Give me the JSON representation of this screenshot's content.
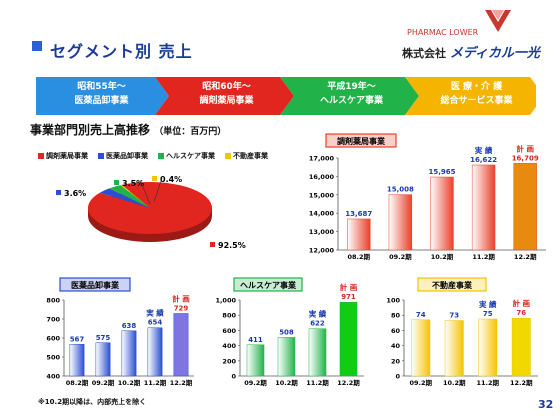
{
  "header": {
    "title": "セグメント別 売上",
    "logo_text": "PHARMAC  LOWER",
    "company_prefix": "株式会社",
    "company_name": "メディカル一光",
    "page_number": "32"
  },
  "timeline": [
    {
      "line1": "昭和55年～",
      "line2": "医薬品卸事業",
      "color": "#2a8fe0"
    },
    {
      "line1": "昭和60年～",
      "line2": "調剤薬局事業",
      "color": "#e0261e"
    },
    {
      "line1": "平成19年～",
      "line2": "ヘルスケア事業",
      "color": "#22b24a"
    },
    {
      "line1": "医 療・介 護",
      "line2": "総合サービス事業",
      "color": "#f5b400"
    }
  ],
  "section": {
    "title": "事業部門別売上高推移",
    "unit": "（単位：百万円）"
  },
  "footnote": "※10.2期以降は、内部売上を除く",
  "chart_data": [
    {
      "type": "pie",
      "title": "",
      "legend": [
        "調剤薬局事業",
        "医薬品卸事業",
        "ヘルスケア事業",
        "不動産事業"
      ],
      "legend_colors": [
        "#e0261e",
        "#2a4fd0",
        "#22b24a",
        "#f5c400"
      ],
      "values": [
        92.5,
        3.6,
        3.5,
        0.4
      ],
      "labels": [
        "92.5%",
        "3.6%",
        "3.5%",
        "0.4%"
      ]
    },
    {
      "type": "bar",
      "title": "調剤薬局事業",
      "categories": [
        "08.2期",
        "09.2期",
        "10.2期",
        "11.2期",
        "12.2期"
      ],
      "values": [
        13687,
        15008,
        15965,
        16622,
        16709
      ],
      "value_labels": [
        "13,687",
        "15,008",
        "15,965",
        "16,622",
        "16,709"
      ],
      "annotations": {
        "jisseki": "実 績",
        "keikaku": "計 画"
      },
      "ylim": [
        12000,
        17000
      ],
      "yticks": [
        "12,000",
        "13,000",
        "14,000",
        "15,000",
        "16,000",
        "17,000"
      ],
      "bar_color": "#e8402a",
      "plan_color": "#e88a10"
    },
    {
      "type": "bar",
      "title": "医薬品卸事業",
      "categories": [
        "08.2期",
        "09.2期",
        "10.2期",
        "11.2期",
        "12.2期"
      ],
      "values": [
        567,
        575,
        638,
        654,
        729
      ],
      "value_labels": [
        "567",
        "575",
        "638",
        "654",
        "729"
      ],
      "annotations": {
        "jisseki": "実 績",
        "keikaku": "計 画"
      },
      "ylim": [
        400,
        800
      ],
      "yticks": [
        "400",
        "500",
        "600",
        "700",
        "800"
      ],
      "bar_color": "#2a4fd0",
      "plan_color": "#7f74e0"
    },
    {
      "type": "bar",
      "title": "ヘルスケア事業",
      "categories": [
        "09.2期",
        "10.2期",
        "11.2期",
        "12.2期"
      ],
      "values": [
        411,
        508,
        622,
        971
      ],
      "value_labels": [
        "411",
        "508",
        "622",
        "971"
      ],
      "annotations": {
        "jisseki": "実 績",
        "keikaku": "計 画"
      },
      "ylim": [
        0,
        1000
      ],
      "yticks": [
        "0",
        "200",
        "400",
        "600",
        "800",
        "1,000"
      ],
      "bar_color": "#22b24a",
      "plan_color": "#11cc11"
    },
    {
      "type": "bar",
      "title": "不動産事業",
      "categories": [
        "09.2期",
        "10.2期",
        "11.2期",
        "12.2期"
      ],
      "values": [
        74,
        73,
        75,
        76
      ],
      "value_labels": [
        "74",
        "73",
        "75",
        "76"
      ],
      "annotations": {
        "jisseki": "実 績",
        "keikaku": "計 画"
      },
      "ylim": [
        0,
        100
      ],
      "yticks": [
        "0",
        "20",
        "40",
        "60",
        "80",
        "100"
      ],
      "bar_color": "#f5c400",
      "plan_color": "#f0d800"
    }
  ]
}
